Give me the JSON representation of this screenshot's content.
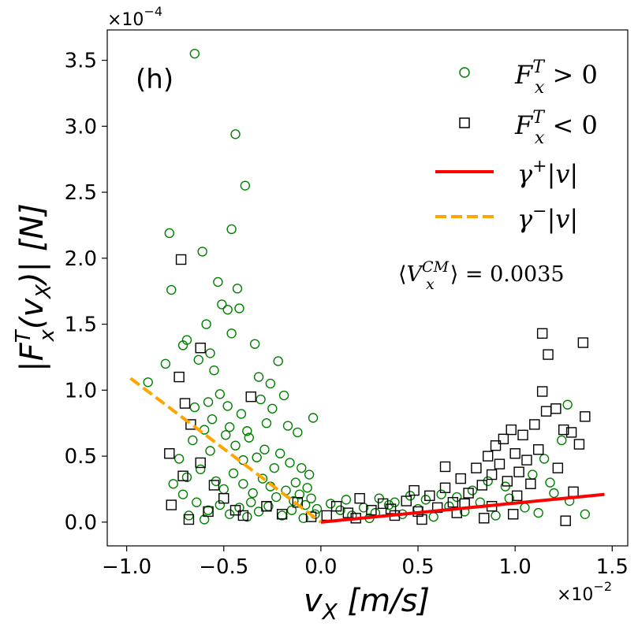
{
  "chart_data": {
    "type": "scatter",
    "panel_label": "(h)",
    "xlabel": "v_X [m/s]",
    "ylabel": "|F_x^T(v_X)| [N]",
    "x_exponent_label": "×10",
    "x_exponent_power": "−2",
    "y_exponent_label": "×10",
    "y_exponent_power": "−4",
    "xlim": [
      -1.1,
      1.58
    ],
    "ylim": [
      -0.18,
      3.73
    ],
    "x_ticks": [
      -1.0,
      -0.5,
      0.0,
      0.5,
      1.0,
      1.5
    ],
    "x_tick_labels": [
      "−1.0",
      "−0.5",
      "0.0",
      "0.5",
      "1.0",
      "1.5"
    ],
    "y_ticks": [
      0.0,
      0.5,
      1.0,
      1.5,
      2.0,
      2.5,
      3.0,
      3.5
    ],
    "y_tick_labels": [
      "0.0",
      "0.5",
      "1.0",
      "1.5",
      "2.0",
      "2.5",
      "3.0",
      "3.5"
    ],
    "annotation": "⟨V_x^CM⟩ = 0.0035",
    "legend_position": "top-right",
    "legend": [
      {
        "label": "F_x^T > 0",
        "marker": "circle",
        "color": "#008000"
      },
      {
        "label": "F_x^T < 0",
        "marker": "square",
        "color": "#000000"
      },
      {
        "label": "γ⁺|v|",
        "marker": "solid-line",
        "color": "#ff0000"
      },
      {
        "label": "γ⁻|v|",
        "marker": "dashed-line",
        "color": "#ffa500"
      }
    ],
    "series": [
      {
        "name": "F_x^T > 0",
        "marker": "circle",
        "color": "#008000",
        "points": [
          [
            -0.65,
            3.55
          ],
          [
            -0.44,
            2.94
          ],
          [
            -0.39,
            2.55
          ],
          [
            -0.46,
            2.22
          ],
          [
            -0.78,
            2.19
          ],
          [
            -0.61,
            2.05
          ],
          [
            -0.77,
            1.76
          ],
          [
            -0.53,
            1.82
          ],
          [
            -0.43,
            1.77
          ],
          [
            -0.42,
            1.62
          ],
          [
            -0.51,
            1.65
          ],
          [
            -0.48,
            1.61
          ],
          [
            -0.59,
            1.5
          ],
          [
            -0.69,
            1.38
          ],
          [
            -0.57,
            1.28
          ],
          [
            -0.34,
            1.35
          ],
          [
            -0.22,
            1.22
          ],
          [
            -0.46,
            1.43
          ],
          [
            -0.26,
            1.05
          ],
          [
            -0.19,
            0.96
          ],
          [
            -0.8,
            1.2
          ],
          [
            -0.89,
            1.06
          ],
          [
            -0.71,
            1.34
          ],
          [
            -0.63,
            1.23
          ],
          [
            -0.55,
            1.15
          ],
          [
            -0.52,
            0.97
          ],
          [
            -0.48,
            0.88
          ],
          [
            -0.41,
            0.82
          ],
          [
            -0.31,
            0.93
          ],
          [
            -0.25,
            0.86
          ],
          [
            -0.17,
            0.73
          ],
          [
            -0.12,
            0.68
          ],
          [
            -0.04,
            0.79
          ],
          [
            -0.66,
            0.62
          ],
          [
            -0.6,
            0.7
          ],
          [
            -0.57,
            0.54
          ],
          [
            -0.49,
            0.66
          ],
          [
            -0.44,
            0.58
          ],
          [
            -0.37,
            0.64
          ],
          [
            -0.33,
            0.49
          ],
          [
            -0.29,
            0.55
          ],
          [
            -0.21,
            0.52
          ],
          [
            -0.16,
            0.45
          ],
          [
            -0.1,
            0.41
          ],
          [
            -0.06,
            0.36
          ],
          [
            -0.73,
            0.48
          ],
          [
            -0.69,
            0.34
          ],
          [
            -0.62,
            0.4
          ],
          [
            -0.54,
            0.31
          ],
          [
            -0.5,
            0.25
          ],
          [
            -0.45,
            0.37
          ],
          [
            -0.4,
            0.29
          ],
          [
            -0.35,
            0.22
          ],
          [
            -0.3,
            0.33
          ],
          [
            -0.26,
            0.27
          ],
          [
            -0.23,
            0.19
          ],
          [
            -0.18,
            0.24
          ],
          [
            -0.14,
            0.16
          ],
          [
            -0.11,
            0.21
          ],
          [
            -0.08,
            0.13
          ],
          [
            -0.05,
            0.18
          ],
          [
            -0.02,
            0.1
          ],
          [
            -0.76,
            0.29
          ],
          [
            -0.71,
            0.21
          ],
          [
            -0.64,
            0.15
          ],
          [
            -0.58,
            0.09
          ],
          [
            -0.52,
            0.13
          ],
          [
            -0.47,
            0.06
          ],
          [
            -0.42,
            0.11
          ],
          [
            -0.38,
            0.04
          ],
          [
            -0.32,
            0.08
          ],
          [
            -0.27,
            0.12
          ],
          [
            -0.2,
            0.05
          ],
          [
            -0.15,
            0.09
          ],
          [
            -0.09,
            0.03
          ],
          [
            -0.03,
            0.06
          ],
          [
            -0.68,
            0.05
          ],
          [
            -0.6,
            0.02
          ],
          [
            -0.36,
            0.15
          ],
          [
            -0.24,
            0.41
          ],
          [
            -0.13,
            0.3
          ],
          [
            -0.07,
            0.26
          ],
          [
            -0.4,
            0.47
          ],
          [
            -0.56,
            0.78
          ],
          [
            -0.47,
            0.72
          ],
          [
            -0.38,
            0.69
          ],
          [
            -0.28,
            0.75
          ],
          [
            -0.65,
            0.87
          ],
          [
            -0.58,
            0.91
          ],
          [
            -0.32,
            1.1
          ],
          [
            0.05,
            0.14
          ],
          [
            0.1,
            0.09
          ],
          [
            0.16,
            0.05
          ],
          [
            0.22,
            0.11
          ],
          [
            0.28,
            0.07
          ],
          [
            0.35,
            0.13
          ],
          [
            0.42,
            0.06
          ],
          [
            0.5,
            0.1
          ],
          [
            0.58,
            0.04
          ],
          [
            0.66,
            0.12
          ],
          [
            0.74,
            0.08
          ],
          [
            0.82,
            0.15
          ],
          [
            0.9,
            0.05
          ],
          [
            0.97,
            0.18
          ],
          [
            1.05,
            0.11
          ],
          [
            1.12,
            0.07
          ],
          [
            1.2,
            0.22
          ],
          [
            1.28,
            0.16
          ],
          [
            1.36,
            0.06
          ],
          [
            1.27,
            0.89
          ],
          [
            1.24,
            0.62
          ],
          [
            1.15,
            0.48
          ],
          [
            1.09,
            0.36
          ],
          [
            1.18,
            0.3
          ],
          [
            0.95,
            0.27
          ],
          [
            0.86,
            0.31
          ],
          [
            0.78,
            0.24
          ],
          [
            0.7,
            0.19
          ],
          [
            0.62,
            0.21
          ],
          [
            0.54,
            0.17
          ],
          [
            0.46,
            0.2
          ],
          [
            0.38,
            0.15
          ],
          [
            0.3,
            0.18
          ],
          [
            0.25,
            0.03
          ],
          [
            0.13,
            0.17
          ]
        ]
      },
      {
        "name": "F_x^T < 0",
        "marker": "square",
        "color": "#000000",
        "points": [
          [
            -0.72,
            1.99
          ],
          [
            -0.62,
            1.32
          ],
          [
            -0.73,
            1.1
          ],
          [
            -0.7,
            0.9
          ],
          [
            -0.67,
            0.74
          ],
          [
            -0.78,
            0.52
          ],
          [
            -0.71,
            0.35
          ],
          [
            -0.62,
            0.45
          ],
          [
            -0.55,
            0.28
          ],
          [
            -0.77,
            0.13
          ],
          [
            -0.68,
            0.02
          ],
          [
            -0.5,
            0.18
          ],
          [
            -0.44,
            0.09
          ],
          [
            -0.36,
            0.95
          ],
          [
            -0.28,
            0.12
          ],
          [
            -0.2,
            0.06
          ],
          [
            -0.12,
            0.15
          ],
          [
            -0.05,
            0.04
          ],
          [
            -0.4,
            0.05
          ],
          [
            -0.58,
            0.08
          ],
          [
            0.03,
            0.05
          ],
          [
            0.08,
            0.12
          ],
          [
            0.14,
            0.07
          ],
          [
            0.2,
            0.18
          ],
          [
            0.26,
            0.09
          ],
          [
            0.32,
            0.14
          ],
          [
            0.38,
            0.05
          ],
          [
            0.44,
            0.16
          ],
          [
            0.5,
            0.08
          ],
          [
            0.56,
            0.2
          ],
          [
            0.6,
            0.11
          ],
          [
            0.64,
            0.26
          ],
          [
            0.68,
            0.15
          ],
          [
            0.72,
            0.33
          ],
          [
            0.76,
            0.22
          ],
          [
            0.8,
            0.41
          ],
          [
            0.83,
            0.28
          ],
          [
            0.86,
            0.5
          ],
          [
            0.88,
            0.36
          ],
          [
            0.9,
            0.58
          ],
          [
            0.92,
            0.44
          ],
          [
            0.94,
            0.63
          ],
          [
            0.96,
            0.31
          ],
          [
            0.98,
            0.7
          ],
          [
            1.0,
            0.52
          ],
          [
            1.02,
            0.38
          ],
          [
            1.04,
            0.66
          ],
          [
            1.06,
            0.47
          ],
          [
            1.08,
            0.29
          ],
          [
            1.1,
            0.74
          ],
          [
            1.12,
            0.55
          ],
          [
            1.14,
            1.43
          ],
          [
            1.17,
            1.27
          ],
          [
            1.14,
            0.99
          ],
          [
            1.16,
            0.84
          ],
          [
            1.21,
            0.86
          ],
          [
            1.25,
            0.7
          ],
          [
            1.29,
            0.68
          ],
          [
            1.33,
            0.59
          ],
          [
            1.36,
            0.8
          ],
          [
            1.35,
            1.36
          ],
          [
            1.3,
            0.23
          ],
          [
            1.26,
            0.01
          ],
          [
            1.22,
            0.41
          ],
          [
            0.99,
            0.06
          ],
          [
            0.84,
            0.03
          ],
          [
            0.7,
            0.07
          ],
          [
            0.52,
            0.02
          ],
          [
            0.36,
            0.1
          ],
          [
            0.18,
            0.03
          ],
          [
            0.64,
            0.42
          ],
          [
            0.74,
            0.14
          ],
          [
            0.88,
            0.12
          ],
          [
            1.01,
            0.2
          ],
          [
            0.48,
            0.24
          ]
        ]
      }
    ],
    "fit_lines": [
      {
        "name": "γ⁺|v|",
        "color": "#ff0000",
        "style": "solid",
        "x": [
          0.0,
          1.46
        ],
        "y": [
          0.0,
          0.21
        ]
      },
      {
        "name": "γ⁻|v|",
        "color": "#ffa500",
        "style": "dashed",
        "x": [
          -0.98,
          0.0
        ],
        "y": [
          1.09,
          0.0
        ]
      }
    ]
  }
}
